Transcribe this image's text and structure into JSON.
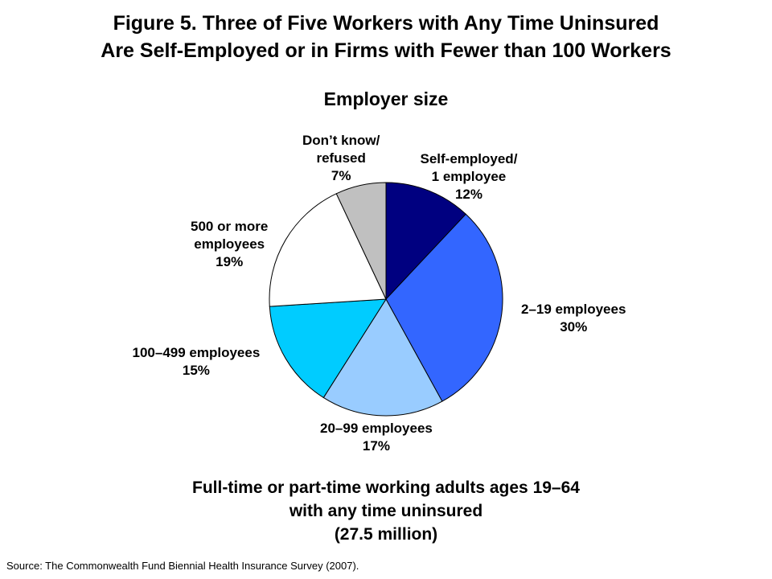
{
  "title_line1": "Figure 5. Three of Five Workers with Any Time Uninsured",
  "title_line2": "Are Self-Employed or in Firms with Fewer than 100 Workers",
  "footer_line1": "Full-time or part-time working adults ages 19–64",
  "footer_line2": "with any time uninsured",
  "footer_line3": "(27.5 million)",
  "source": "Source: The Commonwealth Fund Biennial Health Insurance Survey (2007).",
  "chart_data": {
    "type": "pie",
    "title": "Employer size",
    "slices": [
      {
        "label_lines": [
          "Self-employed/",
          "1 employee"
        ],
        "value": 12,
        "value_label": "12%",
        "color": "#000080"
      },
      {
        "label_lines": [
          "2–19 employees"
        ],
        "value": 30,
        "value_label": "30%",
        "color": "#3366FF"
      },
      {
        "label_lines": [
          "20–99 employees"
        ],
        "value": 17,
        "value_label": "17%",
        "color": "#99CCFF"
      },
      {
        "label_lines": [
          "100–499 employees"
        ],
        "value": 15,
        "value_label": "15%",
        "color": "#00CCFF"
      },
      {
        "label_lines": [
          "500 or more",
          "employees"
        ],
        "value": 19,
        "value_label": "19%",
        "color": "#FFFFFF"
      },
      {
        "label_lines": [
          "Don’t know/",
          "refused"
        ],
        "value": 7,
        "value_label": "7%",
        "color": "#C0C0C0"
      }
    ]
  }
}
